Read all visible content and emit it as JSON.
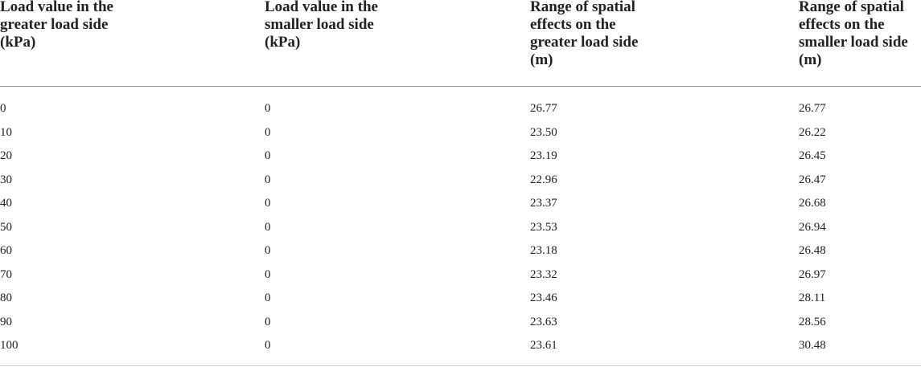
{
  "table": {
    "columns": [
      "Load value in the greater load side (kPa)",
      "Load value in the smaller load side (kPa)",
      "Range of spatial effects on the greater load side (m)",
      "Range of spatial effects on the smaller load side (m)"
    ],
    "rows": [
      [
        "0",
        "0",
        "26.77",
        "26.77"
      ],
      [
        "10",
        "0",
        "23.50",
        "26.22"
      ],
      [
        "20",
        "0",
        "23.19",
        "26.45"
      ],
      [
        "30",
        "0",
        "22.96",
        "26.47"
      ],
      [
        "40",
        "0",
        "23.37",
        "26.68"
      ],
      [
        "50",
        "0",
        "23.53",
        "26.94"
      ],
      [
        "60",
        "0",
        "23.18",
        "26.48"
      ],
      [
        "70",
        "0",
        "23.32",
        "26.97"
      ],
      [
        "80",
        "0",
        "23.46",
        "28.11"
      ],
      [
        "90",
        "0",
        "23.63",
        "28.56"
      ],
      [
        "100",
        "0",
        "23.61",
        "30.48"
      ]
    ]
  }
}
